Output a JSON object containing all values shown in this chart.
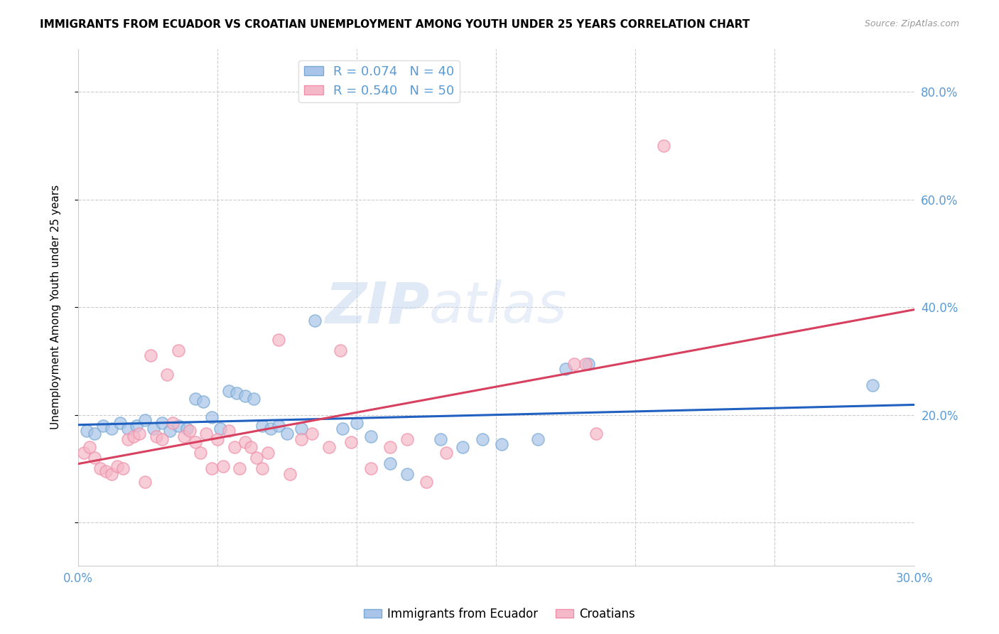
{
  "title": "IMMIGRANTS FROM ECUADOR VS CROATIAN UNEMPLOYMENT AMONG YOUTH UNDER 25 YEARS CORRELATION CHART",
  "source": "Source: ZipAtlas.com",
  "ylabel": "Unemployment Among Youth under 25 years",
  "watermark": "ZIPatlas",
  "legend_ecuador": "R = 0.074   N = 40",
  "legend_croatians": "R = 0.540   N = 50",
  "ecuador_color": "#a8c4e8",
  "croatian_color": "#f5b8c8",
  "ecuador_edge_color": "#7aaad4",
  "croatian_edge_color": "#f090aa",
  "ecuador_line_color": "#2060c0",
  "croatian_line_color": "#d84060",
  "gray_dash_color": "#b0b0b0",
  "axis_label_color": "#5b9bd5",
  "blue_scatter": [
    [
      0.003,
      0.17
    ],
    [
      0.006,
      0.165
    ],
    [
      0.009,
      0.18
    ],
    [
      0.012,
      0.175
    ],
    [
      0.015,
      0.185
    ],
    [
      0.018,
      0.175
    ],
    [
      0.021,
      0.18
    ],
    [
      0.024,
      0.19
    ],
    [
      0.027,
      0.175
    ],
    [
      0.03,
      0.185
    ],
    [
      0.033,
      0.17
    ],
    [
      0.036,
      0.18
    ],
    [
      0.039,
      0.175
    ],
    [
      0.042,
      0.23
    ],
    [
      0.045,
      0.225
    ],
    [
      0.048,
      0.195
    ],
    [
      0.051,
      0.175
    ],
    [
      0.054,
      0.245
    ],
    [
      0.057,
      0.24
    ],
    [
      0.06,
      0.235
    ],
    [
      0.063,
      0.23
    ],
    [
      0.066,
      0.18
    ],
    [
      0.069,
      0.175
    ],
    [
      0.072,
      0.18
    ],
    [
      0.075,
      0.165
    ],
    [
      0.08,
      0.175
    ],
    [
      0.085,
      0.375
    ],
    [
      0.095,
      0.175
    ],
    [
      0.1,
      0.185
    ],
    [
      0.105,
      0.16
    ],
    [
      0.112,
      0.11
    ],
    [
      0.118,
      0.09
    ],
    [
      0.13,
      0.155
    ],
    [
      0.138,
      0.14
    ],
    [
      0.145,
      0.155
    ],
    [
      0.152,
      0.145
    ],
    [
      0.165,
      0.155
    ],
    [
      0.175,
      0.285
    ],
    [
      0.183,
      0.295
    ],
    [
      0.285,
      0.255
    ]
  ],
  "pink_scatter": [
    [
      0.002,
      0.13
    ],
    [
      0.004,
      0.14
    ],
    [
      0.006,
      0.12
    ],
    [
      0.008,
      0.1
    ],
    [
      0.01,
      0.095
    ],
    [
      0.012,
      0.09
    ],
    [
      0.014,
      0.105
    ],
    [
      0.016,
      0.1
    ],
    [
      0.018,
      0.155
    ],
    [
      0.02,
      0.16
    ],
    [
      0.022,
      0.165
    ],
    [
      0.024,
      0.075
    ],
    [
      0.026,
      0.31
    ],
    [
      0.028,
      0.16
    ],
    [
      0.03,
      0.155
    ],
    [
      0.032,
      0.275
    ],
    [
      0.034,
      0.185
    ],
    [
      0.036,
      0.32
    ],
    [
      0.038,
      0.16
    ],
    [
      0.04,
      0.17
    ],
    [
      0.042,
      0.15
    ],
    [
      0.044,
      0.13
    ],
    [
      0.046,
      0.165
    ],
    [
      0.048,
      0.1
    ],
    [
      0.05,
      0.155
    ],
    [
      0.052,
      0.105
    ],
    [
      0.054,
      0.17
    ],
    [
      0.056,
      0.14
    ],
    [
      0.058,
      0.1
    ],
    [
      0.06,
      0.15
    ],
    [
      0.062,
      0.14
    ],
    [
      0.064,
      0.12
    ],
    [
      0.066,
      0.1
    ],
    [
      0.068,
      0.13
    ],
    [
      0.072,
      0.34
    ],
    [
      0.076,
      0.09
    ],
    [
      0.08,
      0.155
    ],
    [
      0.084,
      0.165
    ],
    [
      0.09,
      0.14
    ],
    [
      0.094,
      0.32
    ],
    [
      0.098,
      0.15
    ],
    [
      0.105,
      0.1
    ],
    [
      0.112,
      0.14
    ],
    [
      0.118,
      0.155
    ],
    [
      0.125,
      0.075
    ],
    [
      0.132,
      0.13
    ],
    [
      0.178,
      0.295
    ],
    [
      0.182,
      0.295
    ],
    [
      0.186,
      0.165
    ],
    [
      0.21,
      0.7
    ]
  ],
  "xlim": [
    0.0,
    0.3
  ],
  "ylim": [
    -0.08,
    0.88
  ],
  "yticks": [
    0.0,
    0.2,
    0.4,
    0.6,
    0.8
  ],
  "xtick_positions": [
    0.0,
    0.05,
    0.1,
    0.15,
    0.2,
    0.25,
    0.3
  ],
  "title_fontsize": 11,
  "source_fontsize": 9
}
